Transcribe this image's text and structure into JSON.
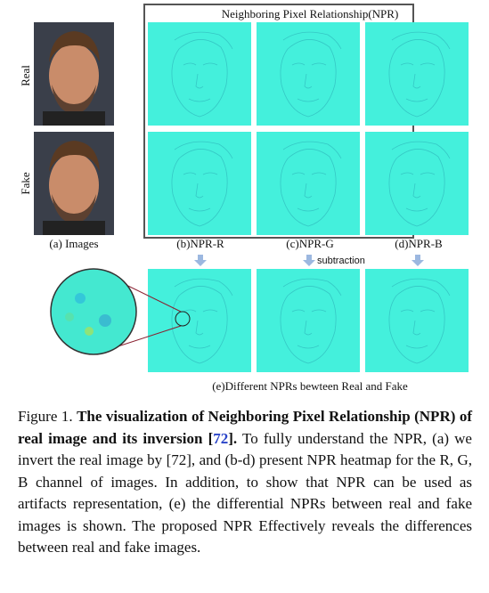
{
  "figure": {
    "panel_title": "Neighboring Pixel Relationship(NPR)",
    "row_labels": [
      "Real",
      "Fake"
    ],
    "column_labels": [
      "(a) Images",
      "(b)NPR-R",
      "(c)NPR-G",
      "(d)NPR-B"
    ],
    "arrow_label": "subtraction",
    "bottom_caption": "(e)Different NPRs bewteen Real and Fake"
  },
  "caption": {
    "label": "Figure 1.",
    "title_before_ref": "The visualization of Neighboring Pixel Relationship (NPR) of real image and its inversion [",
    "ref": "72",
    "title_after_ref": "].",
    "body": "To fully understand the NPR, (a) we invert the real image by [72], and (b-d) present NPR heatmap for the R, G, B channel of images. In addition, to show that NPR can be used as artifacts representation, (e) the differential NPRs between real and fake images is shown. The proposed NPR Effectively reveals the differences between real and fake images."
  }
}
